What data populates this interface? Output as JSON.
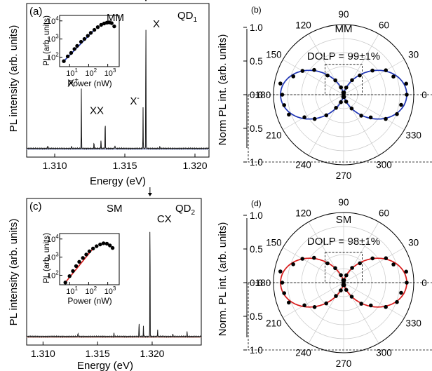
{
  "chart_data": [
    {
      "panel": "(a)",
      "type": "line",
      "left_label": "MM",
      "right_label": "QD",
      "right_label_sub": "1",
      "xlabel": "Energy (eV)",
      "ylabel": "PL intensity (arb. units)",
      "xlim": [
        1.308,
        1.321
      ],
      "xticks": [
        "1.310",
        "1.315",
        "1.320"
      ],
      "xtick_values": [
        1.31,
        1.315,
        1.32
      ],
      "fill_color": "#c7cde6",
      "line_color": "#1a1a1a",
      "peaks": [
        {
          "label": "X",
          "sup": "",
          "x": 1.3165,
          "height": 1.0,
          "arrow": true
        },
        {
          "label": "X",
          "sup": "+",
          "x": 1.3119,
          "height": 0.43,
          "arrow": false
        },
        {
          "label": "XX",
          "sup": "",
          "x": 1.3136,
          "height": 0.23,
          "arrow": false
        },
        {
          "label": "X",
          "sup": "-",
          "x": 1.3163,
          "height": 0.3,
          "arrow": false
        }
      ],
      "minor_peaks": [
        [
          1.3095,
          0.02
        ],
        [
          1.3112,
          0.02
        ],
        [
          1.3128,
          0.05
        ],
        [
          1.3133,
          0.07
        ],
        [
          1.3143,
          0.025
        ],
        [
          1.3175,
          0.015
        ]
      ],
      "inset": {
        "xlabel": "Power (nW)",
        "ylabel": "PL (arb. units)",
        "x_ticks": [
          "10",
          "10",
          "10"
        ],
        "x_tick_exp": [
          "1",
          "2",
          "3"
        ],
        "y_ticks": [
          "10",
          "10",
          "10"
        ],
        "y_tick_exp": [
          "2",
          "3",
          "4"
        ],
        "fit_color": "#1f35b5",
        "points": [
          [
            5,
            60
          ],
          [
            8,
            110
          ],
          [
            12,
            170
          ],
          [
            18,
            280
          ],
          [
            25,
            420
          ],
          [
            40,
            700
          ],
          [
            60,
            1000
          ],
          [
            90,
            1500
          ],
          [
            130,
            2200
          ],
          [
            200,
            3200
          ],
          [
            300,
            4500
          ],
          [
            450,
            6000
          ],
          [
            650,
            7200
          ],
          [
            900,
            8000
          ],
          [
            1200,
            8200
          ],
          [
            1600,
            7500
          ],
          [
            2200,
            5000
          ]
        ]
      }
    },
    {
      "panel": "(b)",
      "type": "polar",
      "title": "MM",
      "annotation": "DOLP = 99±1%",
      "ylabel": "Norm PL int. (arb. units)",
      "r_ticks": [
        "1.0",
        "0.5",
        "0.0",
        "0.5",
        "1.0"
      ],
      "angle_labels": [
        "0",
        "30",
        "60",
        "90",
        "120",
        "150",
        "180",
        "210",
        "240",
        "270",
        "300",
        "330"
      ],
      "dolp": 0.99,
      "phase_deg": 0,
      "fit_color": "#1f35b5",
      "point_angles": [
        0,
        10,
        20,
        30,
        40,
        50,
        60,
        70,
        80,
        90,
        100,
        110,
        120,
        130,
        140,
        150,
        160,
        170,
        180,
        190,
        200,
        210,
        220,
        230,
        240,
        250,
        260,
        270,
        280,
        290,
        300,
        310,
        320,
        330,
        340,
        350
      ]
    },
    {
      "panel": "(c)",
      "type": "line",
      "left_label": "SM",
      "right_label": "QD",
      "right_label_sub": "2",
      "xlabel": "Energy (eV)",
      "ylabel": "PL intensity (arb. units)",
      "xlim": [
        1.3085,
        1.3245
      ],
      "xticks": [
        "1.310",
        "1.315",
        "1.320"
      ],
      "xtick_values": [
        1.31,
        1.315,
        1.32
      ],
      "fill_color": "#d8b8b3",
      "line_color": "#1a1a1a",
      "peaks": [
        {
          "label": "CX",
          "sup": "",
          "x": 1.3198,
          "height": 1.0,
          "arrow": true
        }
      ],
      "minor_peaks": [
        [
          1.3188,
          0.12
        ],
        [
          1.3192,
          0.08
        ],
        [
          1.3205,
          0.05
        ],
        [
          1.3132,
          0.03
        ],
        [
          1.3165,
          0.025
        ],
        [
          1.3219,
          0.02
        ],
        [
          1.3232,
          0.04
        ]
      ],
      "inset": {
        "xlabel": "Power (nW)",
        "ylabel": "PL (arb. units)",
        "x_ticks": [
          "10",
          "10",
          "10"
        ],
        "x_tick_exp": [
          "1",
          "2",
          "3"
        ],
        "y_ticks": [
          "10",
          "10",
          "10"
        ],
        "y_tick_exp": [
          "2",
          "3",
          "4"
        ],
        "fit_color": "#d81b1b",
        "points": [
          [
            6,
            40
          ],
          [
            10,
            90
          ],
          [
            15,
            170
          ],
          [
            22,
            320
          ],
          [
            32,
            550
          ],
          [
            50,
            900
          ],
          [
            75,
            1400
          ],
          [
            110,
            2100
          ],
          [
            170,
            3000
          ],
          [
            260,
            4000
          ],
          [
            400,
            5000
          ],
          [
            600,
            5800
          ],
          [
            900,
            5500
          ],
          [
            1300,
            4400
          ],
          [
            1800,
            3200
          ]
        ]
      }
    },
    {
      "panel": "(d)",
      "type": "polar",
      "title": "SM",
      "annotation": "DOLP = 98±1%",
      "ylabel": "Norm. PL int. (arb. units)",
      "r_ticks": [
        "1.0",
        "0.5",
        "0.0",
        "0.5",
        "1.0"
      ],
      "angle_labels": [
        "0",
        "30",
        "60",
        "90",
        "120",
        "150",
        "180",
        "210",
        "240",
        "270",
        "300",
        "330"
      ],
      "dolp": 0.98,
      "phase_deg": 0,
      "fit_color": "#d81b1b",
      "point_angles": [
        0,
        10,
        20,
        30,
        40,
        50,
        60,
        70,
        80,
        90,
        100,
        110,
        120,
        130,
        140,
        150,
        160,
        170,
        180,
        190,
        200,
        210,
        220,
        230,
        240,
        250,
        260,
        270,
        280,
        290,
        300,
        310,
        320,
        330,
        340,
        350
      ]
    }
  ]
}
